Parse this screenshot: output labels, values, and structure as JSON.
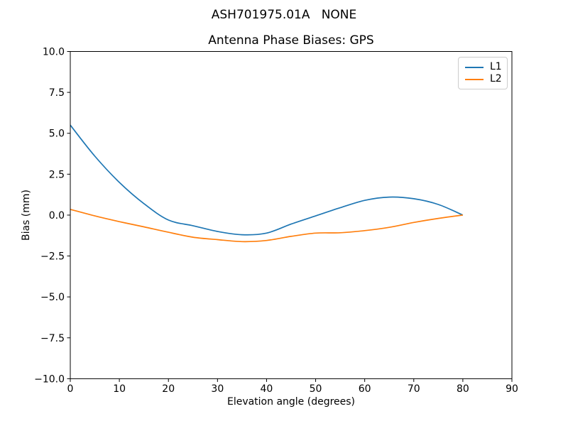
{
  "figure": {
    "suptitle": "ASH701975.01A   NONE"
  },
  "chart_data": {
    "type": "line",
    "suptitle": "ASH701975.01A   NONE",
    "title": "Antenna Phase Biases: GPS",
    "xlabel": "Elevation angle (degrees)",
    "ylabel": "Bias (mm)",
    "xlim": [
      0,
      90
    ],
    "ylim": [
      -10,
      10
    ],
    "xticks": [
      0,
      10,
      20,
      30,
      40,
      50,
      60,
      70,
      80,
      90
    ],
    "xtick_labels": [
      "0",
      "10",
      "20",
      "30",
      "40",
      "50",
      "60",
      "70",
      "80",
      "90"
    ],
    "yticks": [
      -10,
      -7.5,
      -5,
      -2.5,
      0,
      2.5,
      5,
      7.5,
      10
    ],
    "ytick_labels": [
      "−10.0",
      "−7.5",
      "−5.0",
      "−2.5",
      "0.0",
      "2.5",
      "5.0",
      "7.5",
      "10.0"
    ],
    "grid": false,
    "legend_position": "upper right",
    "x": [
      0,
      5,
      10,
      15,
      20,
      25,
      30,
      35,
      40,
      45,
      50,
      55,
      60,
      65,
      70,
      75,
      80
    ],
    "series": [
      {
        "name": "L1",
        "color": "#1f77b4",
        "values": [
          5.5,
          3.6,
          2.0,
          0.7,
          -0.3,
          -0.65,
          -1.0,
          -1.2,
          -1.1,
          -0.55,
          -0.05,
          0.45,
          0.9,
          1.1,
          1.0,
          0.65,
          0.0
        ]
      },
      {
        "name": "L2",
        "color": "#ff7f0e",
        "values": [
          0.35,
          -0.05,
          -0.4,
          -0.72,
          -1.05,
          -1.35,
          -1.5,
          -1.62,
          -1.55,
          -1.3,
          -1.1,
          -1.08,
          -0.95,
          -0.75,
          -0.45,
          -0.2,
          0.0
        ]
      }
    ],
    "colors": {
      "background": "#ffffff",
      "spine": "#000000",
      "legend_border": "#cccccc"
    }
  }
}
